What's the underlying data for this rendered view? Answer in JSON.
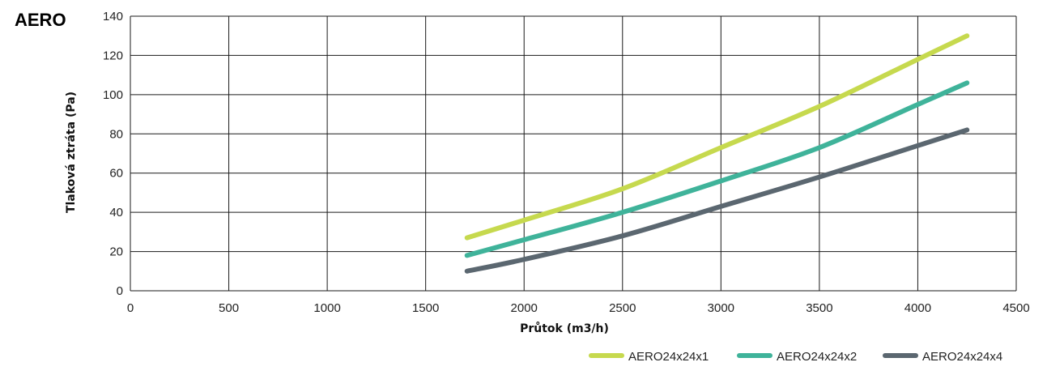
{
  "chart_data": {
    "type": "line",
    "title": "AERO",
    "xlabel": "Průtok (m3/h)",
    "ylabel": "Tlaková ztráta (Pa)",
    "xlim": [
      0,
      4500
    ],
    "ylim": [
      0,
      140
    ],
    "x_ticks": [
      0,
      500,
      1000,
      1500,
      2000,
      2500,
      3000,
      3500,
      4000,
      4500
    ],
    "y_ticks": [
      0,
      20,
      40,
      60,
      80,
      100,
      120,
      140
    ],
    "grid": true,
    "legend_position": "bottom-right",
    "series": [
      {
        "name": "AERO24x24x1",
        "color": "#c6d94e",
        "x": [
          1710,
          2000,
          2500,
          3000,
          3500,
          4000,
          4250
        ],
        "y": [
          27,
          36,
          52,
          73,
          94,
          118,
          130
        ]
      },
      {
        "name": "AERO24x24x2",
        "color": "#3fb39a",
        "x": [
          1710,
          2000,
          2500,
          3000,
          3500,
          4000,
          4250
        ],
        "y": [
          18,
          26,
          40,
          56,
          73,
          95,
          106
        ]
      },
      {
        "name": "AERO24x24x4",
        "color": "#5b6770",
        "x": [
          1710,
          2000,
          2500,
          3000,
          3500,
          4000,
          4250
        ],
        "y": [
          10,
          16,
          28,
          43,
          58,
          74,
          82
        ]
      }
    ]
  }
}
